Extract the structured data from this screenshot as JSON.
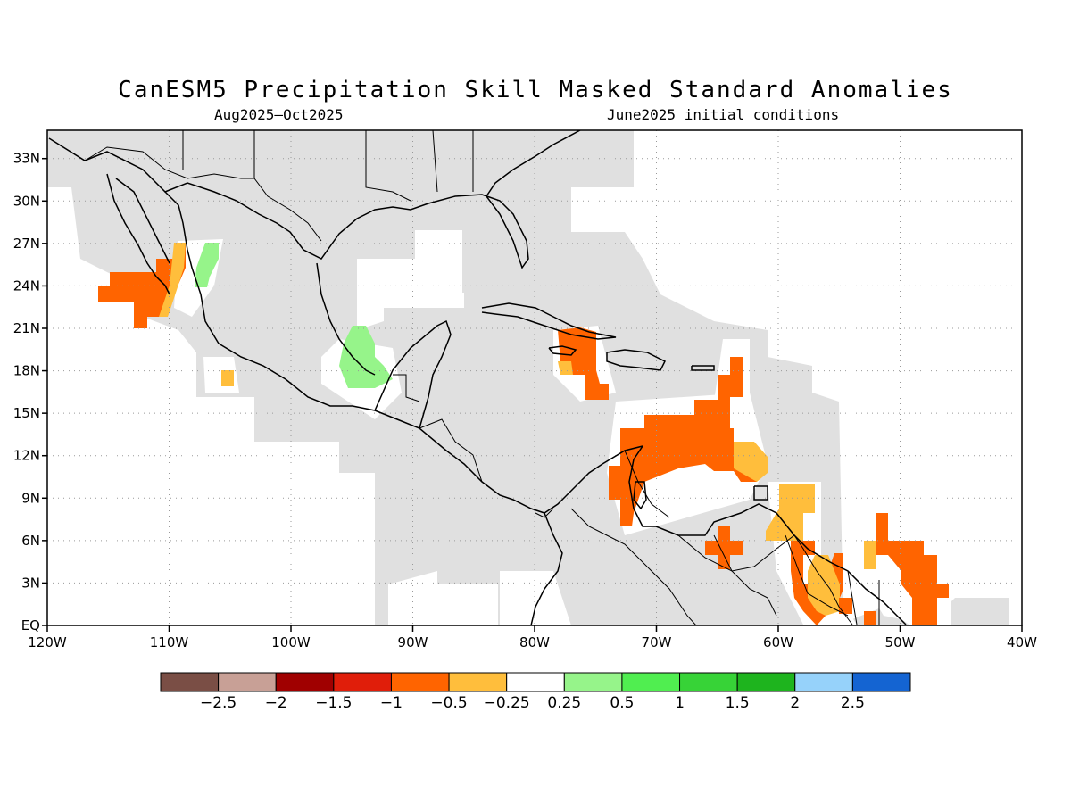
{
  "title": "CanESM5 Precipitation Skill Masked Standard Anomalies",
  "subtitle_left": "Aug2025—Oct2025",
  "subtitle_right": "June2025 initial conditions",
  "map": {
    "lon_range": [
      -120,
      -40
    ],
    "lat_range": [
      0,
      35
    ],
    "x_ticks": [
      {
        "value": -120,
        "label": "120W"
      },
      {
        "value": -110,
        "label": "110W"
      },
      {
        "value": -100,
        "label": "100W"
      },
      {
        "value": -90,
        "label": "90W"
      },
      {
        "value": -80,
        "label": "80W"
      },
      {
        "value": -70,
        "label": "70W"
      },
      {
        "value": -60,
        "label": "60W"
      },
      {
        "value": -50,
        "label": "50W"
      },
      {
        "value": -40,
        "label": "40W"
      }
    ],
    "y_ticks": [
      {
        "value": 0,
        "label": "EQ"
      },
      {
        "value": 3,
        "label": "3N"
      },
      {
        "value": 6,
        "label": "6N"
      },
      {
        "value": 9,
        "label": "9N"
      },
      {
        "value": 12,
        "label": "12N"
      },
      {
        "value": 15,
        "label": "15N"
      },
      {
        "value": 18,
        "label": "18N"
      },
      {
        "value": 21,
        "label": "21N"
      },
      {
        "value": 24,
        "label": "24N"
      },
      {
        "value": 27,
        "label": "27N"
      },
      {
        "value": 30,
        "label": "30N"
      },
      {
        "value": 33,
        "label": "33N"
      }
    ],
    "grid": "dotted",
    "mask_color": "#e0e0e0",
    "coastline_color": "#000000"
  },
  "colorbar": {
    "colors": [
      "#7a4e45",
      "#c8a096",
      "#a00000",
      "#e01e0a",
      "#ff6400",
      "#ffbe3c",
      "#ffffff",
      "#96f48a",
      "#50ee50",
      "#37d337",
      "#1eb41e",
      "#96d2fa",
      "#1464d2"
    ],
    "labels": [
      "−2.5",
      "−2",
      "−1.5",
      "−1",
      "−0.5",
      "−0.25",
      "0.25",
      "0.5",
      "1",
      "1.5",
      "2",
      "2.5"
    ]
  },
  "anomaly_regions": [
    {
      "name": "baja-california-south",
      "category": "-0.5"
    },
    {
      "name": "baja-california-edge",
      "category": "-0.25"
    },
    {
      "name": "gulf-of-california",
      "category": "0.5"
    },
    {
      "name": "mexico-west-coast-small",
      "category": "-0.25"
    },
    {
      "name": "bay-of-campeche",
      "category": "0.5"
    },
    {
      "name": "hispaniola-west",
      "category": "-0.5"
    },
    {
      "name": "jamaica-area",
      "category": "-0.25"
    },
    {
      "name": "lesser-antilles",
      "category": "-0.5"
    },
    {
      "name": "caribbean-south",
      "category": "-0.5"
    },
    {
      "name": "windward-islands",
      "category": "-0.25"
    },
    {
      "name": "colombia-north",
      "category": "-0.5"
    },
    {
      "name": "venezuela-east",
      "category": "-0.25"
    },
    {
      "name": "venezuela-south",
      "category": "-0.5"
    },
    {
      "name": "guyana",
      "category": "-0.25"
    },
    {
      "name": "suriname",
      "category": "-0.25"
    },
    {
      "name": "french-guiana-atlantic",
      "category": "-0.5"
    }
  ]
}
